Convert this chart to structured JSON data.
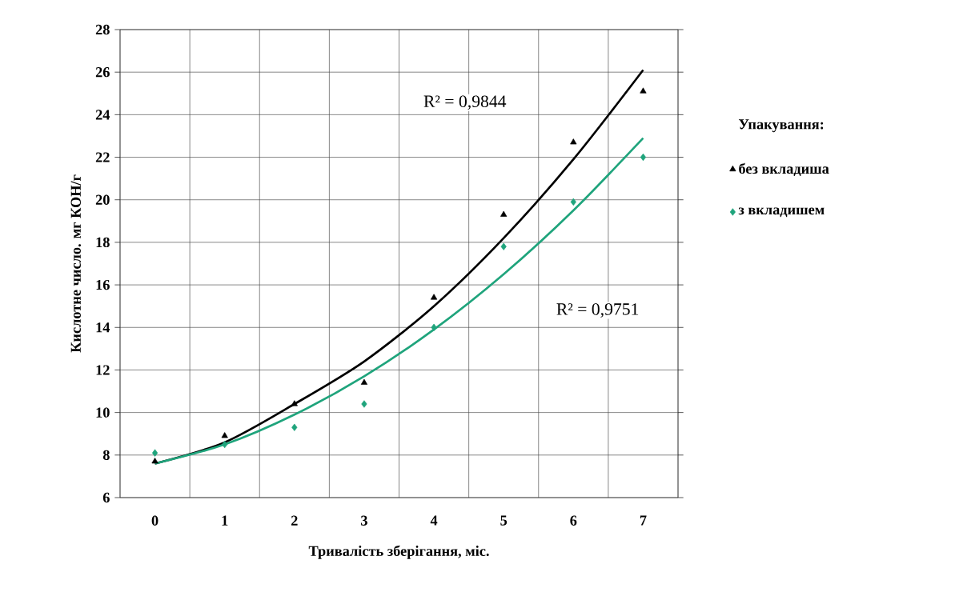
{
  "chart_data": {
    "type": "scatter",
    "xlabel": "Тривалість зберігання, міс.",
    "ylabel": "Кислотне число. мг КОН/г",
    "legend_title": "Упакування:",
    "legend": "right",
    "grid": true,
    "xlim": [
      -0.5,
      7.5
    ],
    "xticks": [
      0,
      1,
      2,
      3,
      4,
      5,
      6,
      7
    ],
    "ylim": [
      6,
      28
    ],
    "yticks": [
      6,
      8,
      10,
      12,
      14,
      16,
      18,
      20,
      22,
      24,
      26,
      28
    ],
    "series": [
      {
        "name": "без вкладиша",
        "marker": "triangle",
        "color": "#000000",
        "x": [
          0,
          1,
          2,
          3,
          4,
          5,
          6,
          7
        ],
        "values": [
          7.7,
          8.9,
          10.4,
          11.4,
          15.4,
          19.3,
          22.7,
          25.1
        ]
      },
      {
        "name": "з вкладишем",
        "marker": "diamond",
        "color": "#1fa47c",
        "x": [
          0,
          1,
          2,
          3,
          4,
          5,
          6,
          7
        ],
        "values": [
          8.1,
          8.5,
          9.3,
          10.4,
          14.0,
          17.8,
          19.9,
          22.0
        ]
      },
      {
        "type": "line",
        "marker": "none",
        "color": "#000000",
        "x": [
          0,
          1,
          2,
          3,
          4,
          5,
          6,
          7
        ],
        "values": [
          7.6,
          8.6,
          10.4,
          12.4,
          15.0,
          18.2,
          21.9,
          26.1
        ]
      },
      {
        "type": "line",
        "marker": "none",
        "color": "#1fa47c",
        "x": [
          0,
          1,
          2,
          3,
          4,
          5,
          6,
          7
        ],
        "values": [
          7.6,
          8.5,
          9.9,
          11.7,
          13.9,
          16.5,
          19.5,
          22.9
        ]
      }
    ],
    "annotations": [
      "R² = 0,9844",
      "R² = 0,9751"
    ]
  }
}
